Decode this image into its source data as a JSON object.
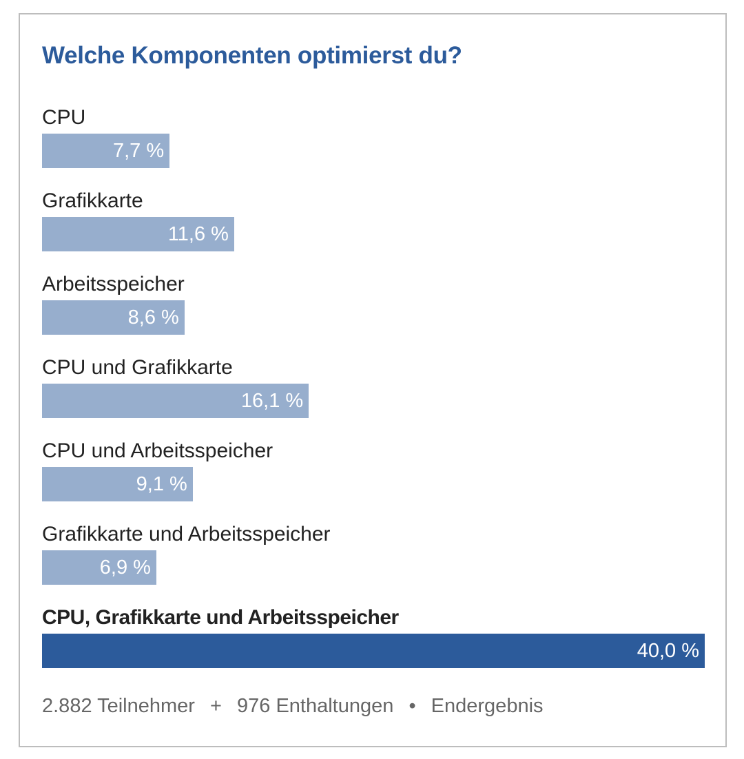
{
  "poll": {
    "title": "Welche Komponenten optimierst du?",
    "footer": {
      "participants": "2.882 Teilnehmer",
      "plus": "+",
      "abstentions": "976 Enthaltungen",
      "dot": "•",
      "status": "Endergebnis"
    }
  },
  "colors": {
    "accent": "#2c5b9b",
    "bar": "#97aecd",
    "winner_bar": "#2c5b9b"
  },
  "chart_data": {
    "type": "bar",
    "orientation": "horizontal",
    "title": "Welche Komponenten optimierst du?",
    "categories": [
      "CPU",
      "Grafikkarte",
      "Arbeitsspeicher",
      "CPU und Grafikkarte",
      "CPU und Arbeitsspeicher",
      "Grafikkarte und Arbeitsspeicher",
      "CPU, Grafikkarte und Arbeitsspeicher"
    ],
    "values": [
      7.7,
      11.6,
      8.6,
      16.1,
      9.1,
      6.9,
      40.0
    ],
    "value_labels": [
      "7,7 %",
      "11,6 %",
      "8,6 %",
      "16,1 %",
      "9,1 %",
      "6,9 %",
      "40,0 %"
    ],
    "unit": "%",
    "highlighted": "CPU, Grafikkarte und Arbeitsspeicher",
    "grid": false
  }
}
